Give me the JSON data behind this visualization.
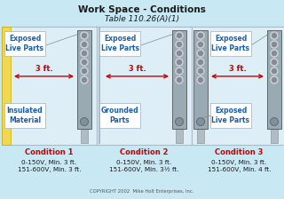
{
  "title": "Work Space - Conditions",
  "subtitle": "Table 110.26(A)(1)",
  "bg_color": "#c8e8f4",
  "wall_bg": "#e8f4f8",
  "yellow_wall": "#f0d850",
  "title_color": "#1a1a1a",
  "red_color": "#cc0000",
  "blue_label_color": "#1a5fa8",
  "black_text": "#1a1a1a",
  "panel_gray": "#a8b4bc",
  "panel_dark": "#6a7880",
  "wall_color": "#b8ccd4",
  "conditions": [
    {
      "label": "Condition 1",
      "line1": "0-150V, Min. 3 ft.",
      "line2": "151-600V, Min. 3 ft.",
      "top_label": "Exposed\nLive Parts",
      "bottom_label": "Insulated\nMaterial",
      "has_yellow_wall": true,
      "has_left_panel": false
    },
    {
      "label": "Condition 2",
      "line1": "0-150V, Min. 3 ft.",
      "line2": "151-600V, Min. 3½ ft.",
      "top_label": "Exposed\nLive Parts",
      "bottom_label": "Grounded\nParts",
      "has_yellow_wall": false,
      "has_left_panel": false
    },
    {
      "label": "Condition 3",
      "line1": "0-150V, Min. 3 ft.",
      "line2": "151-600V, Min. 4 ft.",
      "top_label": "Exposed\nLive Parts",
      "bottom_label": "Exposed\nLive Parts",
      "has_yellow_wall": false,
      "has_left_panel": true
    }
  ],
  "copyright": "COPYRIGHT 2002  Mike Holt Enterprises, Inc."
}
